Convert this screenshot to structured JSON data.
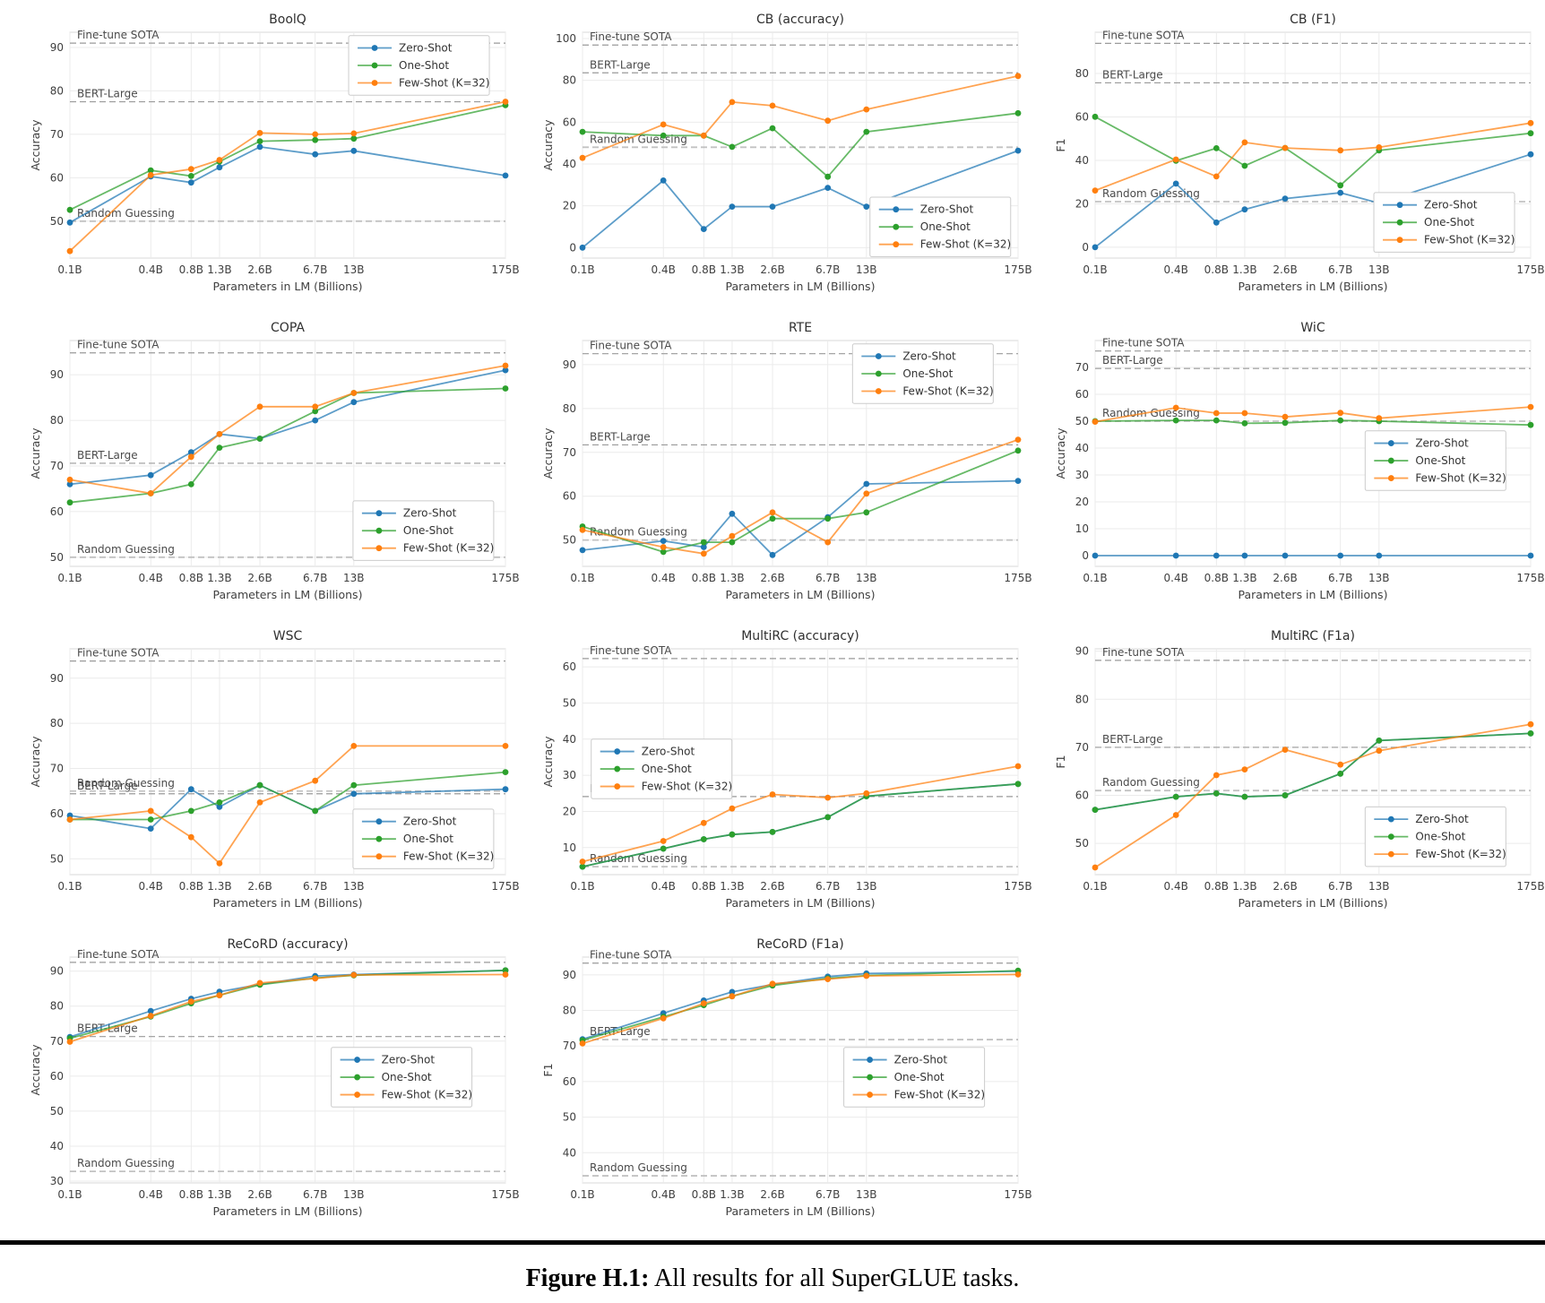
{
  "caption": {
    "label": "Figure H.1:",
    "text": " All results for all SuperGLUE tasks."
  },
  "colors": {
    "zero_shot": "#1f77b4",
    "one_shot": "#2ca02c",
    "few_shot": "#ff7f0e",
    "reference_line": "#9a9a9a",
    "random_line": "#c2c2c2",
    "grid": "#ebebeb",
    "plot_border": "#d9d9d9"
  },
  "chart_data": {
    "common": {
      "type": "line",
      "x_scale": "log",
      "x_values": [
        0.1,
        0.4,
        0.8,
        1.3,
        2.6,
        6.7,
        13,
        175
      ],
      "categories": [
        "0.1B",
        "0.4B",
        "0.8B",
        "1.3B",
        "2.6B",
        "6.7B",
        "13B",
        "175B"
      ],
      "xlabel": "Parameters in LM (Billions)",
      "legend_entries": [
        "Zero-Shot",
        "One-Shot",
        "Few-Shot (K=32)"
      ]
    },
    "charts": [
      {
        "title": "BoolQ",
        "ylabel": "Accuracy",
        "ylim": [
          41.5,
          93.5
        ],
        "yticks": [
          50,
          60,
          70,
          80,
          90
        ],
        "reference_lines": [
          {
            "label": "Fine-tune SOTA",
            "value": 91.0
          },
          {
            "label": "BERT-Large",
            "value": 77.5
          },
          {
            "label": "Random Guessing",
            "value": 50.0,
            "light": true
          }
        ],
        "series": [
          {
            "name": "Zero-Shot",
            "values": [
              49.7,
              60.3,
              58.9,
              62.4,
              67.1,
              65.4,
              66.2,
              60.5
            ]
          },
          {
            "name": "One-Shot",
            "values": [
              52.6,
              61.7,
              60.4,
              63.7,
              68.4,
              68.7,
              69.0,
              76.7
            ]
          },
          {
            "name": "Few-Shot (K=32)",
            "values": [
              43.1,
              60.6,
              62.0,
              64.1,
              70.3,
              70.0,
              70.2,
              77.5
            ]
          }
        ],
        "legend_pos": [
          0.64,
          0.015
        ]
      },
      {
        "title": "CB (accuracy)",
        "ylabel": "Accuracy",
        "ylim": [
          -5,
          103
        ],
        "yticks": [
          0,
          20,
          40,
          60,
          80,
          100
        ],
        "reference_lines": [
          {
            "label": "Fine-tune SOTA",
            "value": 96.9
          },
          {
            "label": "BERT-Large",
            "value": 83.6
          },
          {
            "label": "Random Guessing",
            "value": 48.0,
            "light": true
          }
        ],
        "series": [
          {
            "name": "Zero-Shot",
            "values": [
              0.0,
              32.1,
              8.9,
              19.6,
              19.6,
              28.6,
              19.6,
              46.4
            ]
          },
          {
            "name": "One-Shot",
            "values": [
              55.4,
              53.6,
              53.6,
              48.2,
              57.1,
              33.9,
              55.4,
              64.3
            ]
          },
          {
            "name": "Few-Shot (K=32)",
            "values": [
              42.9,
              58.9,
              53.6,
              69.6,
              67.9,
              60.7,
              66.1,
              82.1
            ]
          }
        ],
        "legend_pos": [
          0.66,
          0.73
        ]
      },
      {
        "title": "CB (F1)",
        "ylabel": "F1",
        "ylim": [
          -5,
          99
        ],
        "yticks": [
          0,
          20,
          40,
          60,
          80
        ],
        "reference_lines": [
          {
            "label": "Fine-tune SOTA",
            "value": 93.9
          },
          {
            "label": "BERT-Large",
            "value": 75.7
          },
          {
            "label": "Random Guessing",
            "value": 21.0,
            "light": true
          }
        ],
        "series": [
          {
            "name": "Zero-Shot",
            "values": [
              0.0,
              29.3,
              11.4,
              17.4,
              22.4,
              25.1,
              20.3,
              42.8
            ]
          },
          {
            "name": "One-Shot",
            "values": [
              60.1,
              39.8,
              45.6,
              37.5,
              45.7,
              28.5,
              44.6,
              52.5
            ]
          },
          {
            "name": "Few-Shot (K=32)",
            "values": [
              26.1,
              40.4,
              32.6,
              48.3,
              45.7,
              44.6,
              46.0,
              57.2
            ]
          }
        ],
        "legend_pos": [
          0.64,
          0.71
        ]
      },
      {
        "title": "COPA",
        "ylabel": "Accuracy",
        "ylim": [
          48,
          97.5
        ],
        "yticks": [
          50,
          60,
          70,
          80,
          90
        ],
        "reference_lines": [
          {
            "label": "Fine-tune SOTA",
            "value": 94.8
          },
          {
            "label": "BERT-Large",
            "value": 70.6
          },
          {
            "label": "Random Guessing",
            "value": 50.0,
            "light": true
          }
        ],
        "series": [
          {
            "name": "Zero-Shot",
            "values": [
              66,
              68,
              73,
              77,
              76,
              80,
              84,
              91
            ]
          },
          {
            "name": "One-Shot",
            "values": [
              62,
              64,
              66,
              74,
              76,
              82,
              86,
              87
            ]
          },
          {
            "name": "Few-Shot (K=32)",
            "values": [
              67,
              64,
              72,
              77,
              83,
              83,
              86,
              92
            ]
          }
        ],
        "legend_pos": [
          0.65,
          0.71
        ]
      },
      {
        "title": "RTE",
        "ylabel": "Accuracy",
        "ylim": [
          44,
          95.5
        ],
        "yticks": [
          50,
          60,
          70,
          80,
          90
        ],
        "reference_lines": [
          {
            "label": "Fine-tune SOTA",
            "value": 92.5
          },
          {
            "label": "BERT-Large",
            "value": 71.7
          },
          {
            "label": "Random Guessing",
            "value": 50.0,
            "light": true
          }
        ],
        "series": [
          {
            "name": "Zero-Shot",
            "values": [
              47.7,
              49.8,
              48.4,
              56.0,
              46.6,
              55.2,
              62.8,
              63.5
            ]
          },
          {
            "name": "One-Shot",
            "values": [
              53.1,
              47.3,
              49.5,
              49.5,
              54.9,
              54.9,
              56.3,
              70.4
            ]
          },
          {
            "name": "Few-Shot (K=32)",
            "values": [
              52.3,
              48.4,
              46.9,
              50.9,
              56.3,
              49.5,
              60.6,
              72.9
            ]
          }
        ],
        "legend_pos": [
          0.62,
          0.015
        ]
      },
      {
        "title": "WiC",
        "ylabel": "Accuracy",
        "ylim": [
          -4,
          80
        ],
        "yticks": [
          0,
          10,
          20,
          30,
          40,
          50,
          60,
          70
        ],
        "reference_lines": [
          {
            "label": "Fine-tune SOTA",
            "value": 76.1
          },
          {
            "label": "BERT-Large",
            "value": 69.6
          },
          {
            "label": "Random Guessing",
            "value": 50.0,
            "light": true
          }
        ],
        "series": [
          {
            "name": "Zero-Shot",
            "values": [
              0,
              0,
              0,
              0,
              0,
              0,
              0,
              0
            ]
          },
          {
            "name": "One-Shot",
            "values": [
              50.0,
              50.3,
              50.3,
              49.2,
              49.4,
              50.3,
              50.0,
              48.6
            ]
          },
          {
            "name": "Few-Shot (K=32)",
            "values": [
              49.8,
              55.0,
              53.0,
              53.0,
              51.6,
              53.1,
              51.1,
              55.3
            ]
          }
        ],
        "legend_pos": [
          0.62,
          0.4
        ]
      },
      {
        "title": "WSC",
        "ylabel": "Accuracy",
        "ylim": [
          46.5,
          96.5
        ],
        "yticks": [
          50,
          60,
          70,
          80,
          90
        ],
        "reference_lines": [
          {
            "label": "Fine-tune SOTA",
            "value": 93.8
          },
          {
            "label": "BERT-Large",
            "value": 64.4
          },
          {
            "label": "Random Guessing",
            "value": 65.0,
            "light": true
          }
        ],
        "series": [
          {
            "name": "Zero-Shot",
            "values": [
              59.6,
              56.7,
              65.4,
              61.5,
              66.3,
              60.6,
              64.4,
              65.4
            ]
          },
          {
            "name": "One-Shot",
            "values": [
              58.7,
              58.7,
              60.6,
              62.5,
              66.3,
              60.6,
              66.3,
              69.2
            ]
          },
          {
            "name": "Few-Shot (K=32)",
            "values": [
              58.7,
              60.6,
              54.8,
              49.0,
              62.5,
              67.3,
              75.0,
              75.0
            ]
          }
        ],
        "legend_pos": [
          0.65,
          0.71
        ]
      },
      {
        "title": "MultiRC (accuracy)",
        "ylabel": "Accuracy",
        "ylim": [
          2.5,
          65
        ],
        "yticks": [
          10,
          20,
          30,
          40,
          50,
          60
        ],
        "reference_lines": [
          {
            "label": "Fine-tune SOTA",
            "value": 62.3
          },
          {
            "label": "BERT-Large",
            "value": 24.1
          },
          {
            "label": "Random Guessing",
            "value": 4.7,
            "light": true
          }
        ],
        "series": [
          {
            "name": "Zero-Shot",
            "values": [
              4.7,
              9.7,
              12.3,
              13.6,
              14.3,
              18.4,
              24.2,
              27.6
            ]
          },
          {
            "name": "One-Shot",
            "values": [
              4.7,
              9.7,
              12.3,
              13.6,
              14.3,
              18.4,
              24.2,
              27.6
            ]
          },
          {
            "name": "Few-Shot (K=32)",
            "values": [
              6.1,
              11.8,
              16.8,
              20.8,
              24.7,
              23.8,
              25.0,
              32.5
            ]
          }
        ],
        "legend_pos": [
          0.02,
          0.4
        ]
      },
      {
        "title": "MultiRC (F1a)",
        "ylabel": "F1",
        "ylim": [
          43.5,
          90.5
        ],
        "yticks": [
          50,
          60,
          70,
          80,
          90
        ],
        "reference_lines": [
          {
            "label": "Fine-tune SOTA",
            "value": 88.1
          },
          {
            "label": "BERT-Large",
            "value": 70.0
          },
          {
            "label": "Random Guessing",
            "value": 61.0,
            "light": true
          }
        ],
        "series": [
          {
            "name": "Zero-Shot",
            "values": [
              57.0,
              59.7,
              60.4,
              59.7,
              60.0,
              64.5,
              71.4,
              72.9
            ]
          },
          {
            "name": "One-Shot",
            "values": [
              57.0,
              59.7,
              60.4,
              59.7,
              60.0,
              64.5,
              71.4,
              72.9
            ]
          },
          {
            "name": "Few-Shot (K=32)",
            "values": [
              45.0,
              55.9,
              64.2,
              65.4,
              69.5,
              66.4,
              69.3,
              74.8
            ]
          }
        ],
        "legend_pos": [
          0.62,
          0.7
        ]
      },
      {
        "title": "ReCoRD (accuracy)",
        "ylabel": "Accuracy",
        "ylim": [
          29.5,
          94
        ],
        "yticks": [
          30,
          40,
          50,
          60,
          70,
          80,
          90
        ],
        "reference_lines": [
          {
            "label": "Fine-tune SOTA",
            "value": 92.5
          },
          {
            "label": "BERT-Large",
            "value": 71.3
          },
          {
            "label": "Random Guessing",
            "value": 32.8,
            "light": true
          }
        ],
        "series": [
          {
            "name": "Zero-Shot",
            "values": [
              71.2,
              78.6,
              82.1,
              84.1,
              86.2,
              88.6,
              89.0,
              90.2
            ]
          },
          {
            "name": "One-Shot",
            "values": [
              70.8,
              77.0,
              80.8,
              83.1,
              86.1,
              88.0,
              88.8,
              90.2
            ]
          },
          {
            "name": "Few-Shot (K=32)",
            "values": [
              69.8,
              77.2,
              81.3,
              83.1,
              86.6,
              87.9,
              88.9,
              89.0
            ]
          }
        ],
        "legend_pos": [
          0.6,
          0.4
        ]
      },
      {
        "title": "ReCoRD (F1a)",
        "ylabel": "F1",
        "ylim": [
          31.5,
          95
        ],
        "yticks": [
          40,
          50,
          60,
          70,
          80,
          90
        ],
        "reference_lines": [
          {
            "label": "Fine-tune SOTA",
            "value": 93.3
          },
          {
            "label": "BERT-Large",
            "value": 71.8
          },
          {
            "label": "Random Guessing",
            "value": 33.5,
            "light": true
          }
        ],
        "series": [
          {
            "name": "Zero-Shot",
            "values": [
              71.9,
              79.2,
              82.8,
              85.2,
              87.3,
              89.5,
              90.4,
              91.0
            ]
          },
          {
            "name": "One-Shot",
            "values": [
              71.6,
              78.2,
              81.5,
              84.0,
              87.0,
              89.0,
              89.8,
              91.2
            ]
          },
          {
            "name": "Few-Shot (K=32)",
            "values": [
              70.7,
              77.8,
              82.0,
              84.0,
              87.5,
              88.8,
              89.7,
              90.1
            ]
          }
        ],
        "legend_pos": [
          0.6,
          0.4
        ]
      }
    ]
  }
}
